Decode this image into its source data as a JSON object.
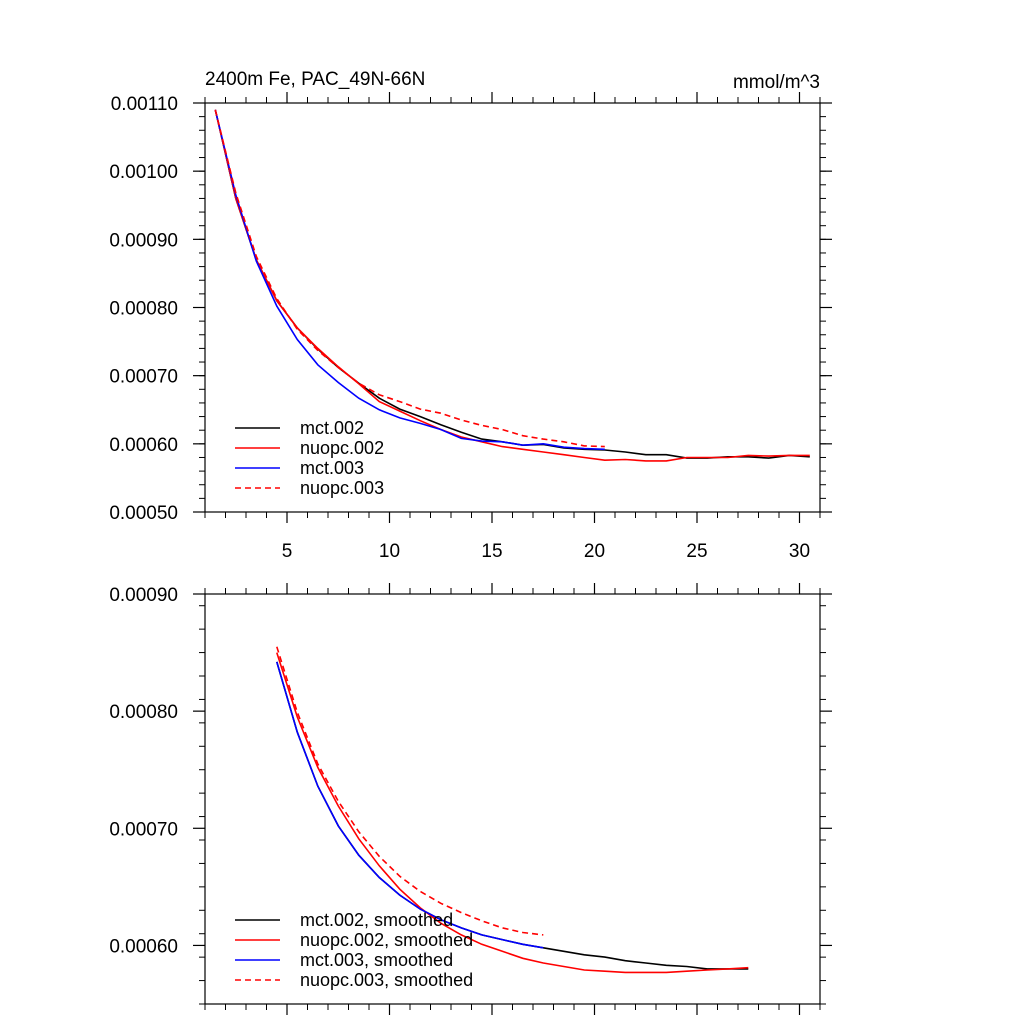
{
  "chart_data": [
    {
      "type": "line",
      "title": "2400m Fe, PAC_49N-66N",
      "units": "mmol/m^3",
      "xlim": [
        1,
        31
      ],
      "ylim": [
        0.0005,
        0.0011
      ],
      "x_ticks": [
        5,
        10,
        15,
        20,
        25,
        30
      ],
      "x_tick_labels": [
        "5",
        "10",
        "15",
        "20",
        "25",
        "30"
      ],
      "y_ticks": [
        0.0005,
        0.0006,
        0.0007,
        0.0008,
        0.0009,
        0.001,
        0.0011
      ],
      "y_tick_labels": [
        "0.00050",
        "0.00060",
        "0.00070",
        "0.00080",
        "0.00090",
        "0.00100",
        "0.00110"
      ],
      "series": [
        {
          "name": "mct.002",
          "color": "#000000",
          "dash": "solid",
          "x": [
            1.5,
            2.5,
            3.5,
            4.5,
            5.5,
            6.5,
            7.5,
            8.5,
            9.5,
            10.5,
            11.5,
            12.5,
            13.5,
            14.5,
            15.5,
            16.5,
            17.5,
            18.5,
            19.5,
            20.5,
            21.5,
            22.5,
            23.5,
            24.5,
            25.5,
            26.5,
            27.5,
            28.5,
            29.5,
            30.5
          ],
          "values": [
            0.00109,
            0.00096,
            0.00087,
            0.00081,
            0.00077,
            0.000739,
            0.000712,
            0.000689,
            0.000667,
            0.000651,
            0.00064,
            0.000628,
            0.000617,
            0.000607,
            0.000603,
            0.000598,
            0.000599,
            0.000594,
            0.000592,
            0.000591,
            0.000588,
            0.000584,
            0.000584,
            0.000579,
            0.000579,
            0.000581,
            0.000581,
            0.000579,
            0.000583,
            0.000581
          ]
        },
        {
          "name": "nuopc.002",
          "color": "#ff0000",
          "dash": "solid",
          "x": [
            1.5,
            2.5,
            3.5,
            4.5,
            5.5,
            6.5,
            7.5,
            8.5,
            9.5,
            10.5,
            11.5,
            12.5,
            13.5,
            14.5,
            15.5,
            16.5,
            17.5,
            18.5,
            19.5,
            20.5,
            21.5,
            22.5,
            23.5,
            24.5,
            25.5,
            26.5,
            27.5,
            28.5,
            29.5,
            30.5
          ],
          "values": [
            0.00109,
            0.00096,
            0.00087,
            0.00081,
            0.00077,
            0.00074,
            0.000713,
            0.000688,
            0.000662,
            0.000648,
            0.000634,
            0.000621,
            0.00061,
            0.000603,
            0.000596,
            0.000592,
            0.000588,
            0.000584,
            0.00058,
            0.000576,
            0.000577,
            0.000575,
            0.000575,
            0.00058,
            0.00058,
            0.00058,
            0.000583,
            0.000582,
            0.000583,
            0.000583
          ]
        },
        {
          "name": "mct.003",
          "color": "#0000ff",
          "dash": "solid",
          "x": [
            1.5,
            2.5,
            3.5,
            4.5,
            5.5,
            6.5,
            7.5,
            8.5,
            9.5,
            10.5,
            11.5,
            12.5,
            13.5,
            14.5,
            15.5,
            16.5,
            17.5,
            18.5,
            19.5,
            20.5
          ],
          "values": [
            0.00109,
            0.000965,
            0.000868,
            0.000802,
            0.000753,
            0.000716,
            0.00069,
            0.000667,
            0.00065,
            0.000638,
            0.00063,
            0.000621,
            0.000608,
            0.000604,
            0.000603,
            0.000598,
            0.0006,
            0.000595,
            0.000593,
            0.000592
          ]
        },
        {
          "name": "nuopc.003",
          "color": "#ff0000",
          "dash": "dashed",
          "x": [
            1.5,
            2.5,
            3.5,
            4.5,
            5.5,
            6.5,
            7.5,
            8.5,
            9.5,
            10.5,
            11.5,
            12.5,
            13.5,
            14.5,
            15.5,
            16.5,
            17.5,
            18.5,
            19.5,
            20.5
          ],
          "values": [
            0.00109,
            0.000968,
            0.000875,
            0.000813,
            0.000768,
            0.000737,
            0.000712,
            0.000689,
            0.000672,
            0.000662,
            0.000651,
            0.000645,
            0.000635,
            0.000627,
            0.000621,
            0.000612,
            0.000607,
            0.000603,
            0.000597,
            0.000596
          ]
        }
      ],
      "legend": {
        "position": "lower-left",
        "entries": [
          "mct.002",
          "nuopc.002",
          "mct.003",
          "nuopc.003"
        ]
      }
    },
    {
      "type": "line",
      "title": "",
      "xlim": [
        1,
        31
      ],
      "ylim": [
        0.00055,
        0.0009
      ],
      "x_ticks": [
        5,
        10,
        15,
        20,
        25,
        30
      ],
      "y_ticks": [
        0.0006,
        0.0007,
        0.0008,
        0.0009
      ],
      "y_tick_labels": [
        "0.00060",
        "0.00070",
        "0.00080",
        "0.00090"
      ],
      "series": [
        {
          "name": "mct.002, smoothed",
          "color": "#000000",
          "dash": "solid",
          "x": [
            4.5,
            5.5,
            6.5,
            7.5,
            8.5,
            9.5,
            10.5,
            11.5,
            12.5,
            13.5,
            14.5,
            15.5,
            16.5,
            17.5,
            18.5,
            19.5,
            20.5,
            21.5,
            22.5,
            23.5,
            24.5,
            25.5,
            26.5,
            27.5
          ],
          "values": [
            0.000842,
            0.000782,
            0.000736,
            0.000702,
            0.000677,
            0.000658,
            0.000643,
            0.000631,
            0.000622,
            0.000615,
            0.000609,
            0.000605,
            0.000601,
            0.000598,
            0.000595,
            0.000592,
            0.00059,
            0.000587,
            0.000585,
            0.000583,
            0.000582,
            0.00058,
            0.00058,
            0.00058
          ]
        },
        {
          "name": "nuopc.002, smoothed",
          "color": "#ff0000",
          "dash": "solid",
          "x": [
            4.5,
            5.5,
            6.5,
            7.5,
            8.5,
            9.5,
            10.5,
            11.5,
            12.5,
            13.5,
            14.5,
            15.5,
            16.5,
            17.5,
            18.5,
            19.5,
            20.5,
            21.5,
            22.5,
            23.5,
            24.5,
            25.5,
            26.5,
            27.5
          ],
          "values": [
            0.00085,
            0.000795,
            0.000752,
            0.000719,
            0.000691,
            0.000668,
            0.000648,
            0.000632,
            0.000619,
            0.000609,
            0.000601,
            0.000595,
            0.000589,
            0.000585,
            0.000582,
            0.000579,
            0.000578,
            0.000577,
            0.000577,
            0.000577,
            0.000578,
            0.000579,
            0.00058,
            0.000581
          ]
        },
        {
          "name": "mct.003, smoothed",
          "color": "#0000ff",
          "dash": "solid",
          "x": [
            4.5,
            5.5,
            6.5,
            7.5,
            8.5,
            9.5,
            10.5,
            11.5,
            12.5,
            13.5,
            14.5,
            15.5,
            16.5,
            17.5
          ],
          "values": [
            0.000842,
            0.000782,
            0.000736,
            0.000702,
            0.000677,
            0.000658,
            0.000643,
            0.000631,
            0.000622,
            0.000615,
            0.000609,
            0.000605,
            0.000601,
            0.000598
          ]
        },
        {
          "name": "nuopc.003, smoothed",
          "color": "#ff0000",
          "dash": "dashed",
          "x": [
            4.5,
            5.5,
            6.5,
            7.5,
            8.5,
            9.5,
            10.5,
            11.5,
            12.5,
            13.5,
            14.5,
            15.5,
            16.5,
            17.5
          ],
          "values": [
            0.000855,
            0.000799,
            0.000755,
            0.000723,
            0.000697,
            0.000676,
            0.000659,
            0.000646,
            0.000636,
            0.000628,
            0.000621,
            0.000615,
            0.000611,
            0.000609
          ]
        }
      ],
      "legend": {
        "position": "lower-left",
        "entries": [
          "mct.002, smoothed",
          "nuopc.002, smoothed",
          "mct.003, smoothed",
          "nuopc.003, smoothed"
        ]
      }
    }
  ]
}
